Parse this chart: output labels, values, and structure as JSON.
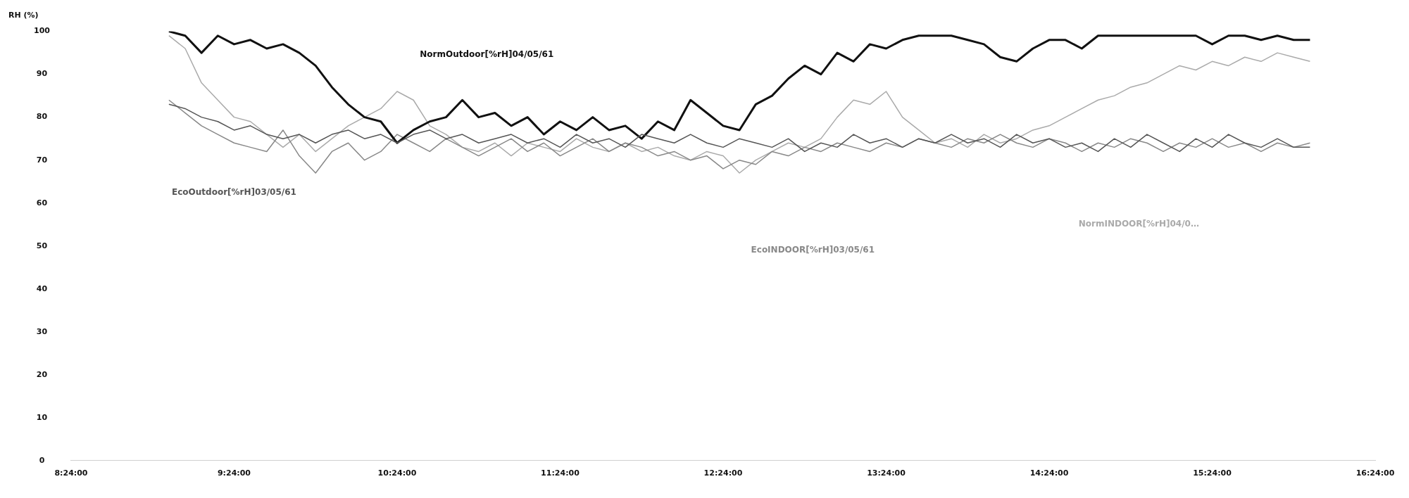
{
  "chart_data": {
    "type": "line",
    "ylabel": "RH (%)",
    "x": [
      9.0,
      9.1,
      9.2,
      9.3,
      9.4,
      9.5,
      9.6,
      9.7,
      9.8,
      9.9,
      10.0,
      10.1,
      10.2,
      10.3,
      10.4,
      10.5,
      10.6,
      10.7,
      10.8,
      10.9,
      11.0,
      11.1,
      11.2,
      11.3,
      11.4,
      11.5,
      11.6,
      11.7,
      11.8,
      11.9,
      12.0,
      12.1,
      12.2,
      12.3,
      12.4,
      12.5,
      12.6,
      12.7,
      12.8,
      12.9,
      13.0,
      13.1,
      13.2,
      13.3,
      13.4,
      13.5,
      13.6,
      13.7,
      13.8,
      13.9,
      14.0,
      14.1,
      14.2,
      14.3,
      14.4,
      14.5,
      14.6,
      14.7,
      14.8,
      14.9,
      15.0,
      15.1,
      15.2,
      15.3,
      15.4,
      15.5,
      15.6,
      15.7,
      15.8,
      15.9,
      16.0
    ],
    "series": [
      {
        "name": "EcoOutdoor[%rH]03/05/61",
        "color": "#555555",
        "values": [
          83,
          82,
          80,
          79,
          77,
          78,
          76,
          75,
          76,
          74,
          76,
          77,
          75,
          76,
          74,
          76,
          77,
          75,
          76,
          74,
          75,
          76,
          74,
          75,
          73,
          76,
          74,
          75,
          73,
          76,
          75,
          74,
          76,
          74,
          73,
          75,
          74,
          73,
          75,
          72,
          74,
          73,
          76,
          74,
          75,
          73,
          75,
          74,
          76,
          74,
          75,
          73,
          76,
          74,
          75,
          73,
          74,
          72,
          75,
          73,
          76,
          74,
          72,
          75,
          73,
          76,
          74,
          73,
          75,
          73,
          73
        ]
      },
      {
        "name": "NormOutdoor[%rH]04/05/61",
        "color": "#111111",
        "values": [
          100,
          99,
          95,
          99,
          97,
          98,
          96,
          97,
          95,
          92,
          87,
          83,
          80,
          79,
          74,
          77,
          79,
          80,
          84,
          80,
          81,
          78,
          80,
          76,
          79,
          77,
          80,
          77,
          78,
          75,
          79,
          77,
          84,
          81,
          78,
          77,
          83,
          85,
          89,
          92,
          90,
          95,
          93,
          97,
          96,
          98,
          99,
          99,
          99,
          98,
          97,
          94,
          93,
          96,
          98,
          98,
          96,
          99,
          99,
          99,
          99,
          99,
          99,
          99,
          97,
          99,
          99,
          98,
          99,
          98,
          98
        ]
      },
      {
        "name": "EcoINDOOR[%rH]03/05/61",
        "color": "#888888",
        "values": [
          84,
          81,
          78,
          76,
          74,
          73,
          72,
          77,
          71,
          67,
          72,
          74,
          70,
          72,
          76,
          74,
          72,
          75,
          73,
          71,
          73,
          75,
          72,
          74,
          71,
          73,
          75,
          72,
          74,
          73,
          71,
          72,
          70,
          71,
          68,
          70,
          69,
          72,
          71,
          73,
          72,
          74,
          73,
          72,
          74,
          73,
          75,
          74,
          73,
          75,
          74,
          76,
          74,
          73,
          75,
          74,
          72,
          74,
          73,
          75,
          74,
          72,
          74,
          73,
          75,
          73,
          74,
          72,
          74,
          73,
          74
        ]
      },
      {
        "name": "NormINDOOR[%rH]04/0…",
        "color": "#aaaaaa",
        "values": [
          99,
          96,
          88,
          84,
          80,
          79,
          76,
          73,
          76,
          72,
          75,
          78,
          80,
          82,
          86,
          84,
          78,
          76,
          73,
          72,
          74,
          71,
          74,
          73,
          72,
          75,
          73,
          72,
          74,
          72,
          73,
          71,
          70,
          72,
          71,
          67,
          70,
          72,
          74,
          73,
          75,
          80,
          84,
          83,
          86,
          80,
          77,
          74,
          75,
          73,
          76,
          74,
          75,
          77,
          78,
          80,
          82,
          84,
          85,
          87,
          88,
          90,
          92,
          91,
          93,
          92,
          94,
          93,
          95,
          94,
          93
        ]
      }
    ],
    "xlim": [
      8.4,
      16.4
    ],
    "xticks": [
      {
        "value": 8.4,
        "label": "8:24:00"
      },
      {
        "value": 9.4,
        "label": "9:24:00"
      },
      {
        "value": 10.4,
        "label": "10:24:00"
      },
      {
        "value": 11.4,
        "label": "11:24:00"
      },
      {
        "value": 12.4,
        "label": "12:24:00"
      },
      {
        "value": 13.4,
        "label": "13:24:00"
      },
      {
        "value": 14.4,
        "label": "14:24:00"
      },
      {
        "value": 15.4,
        "label": "15:24:00"
      },
      {
        "value": 16.4,
        "label": "16:24:00"
      }
    ],
    "ylim": [
      0,
      100
    ],
    "yticks": [
      0,
      10,
      20,
      30,
      40,
      50,
      60,
      70,
      80,
      90,
      100
    ],
    "grid": false,
    "legend": false,
    "marker": "none",
    "line_style": "solid"
  }
}
